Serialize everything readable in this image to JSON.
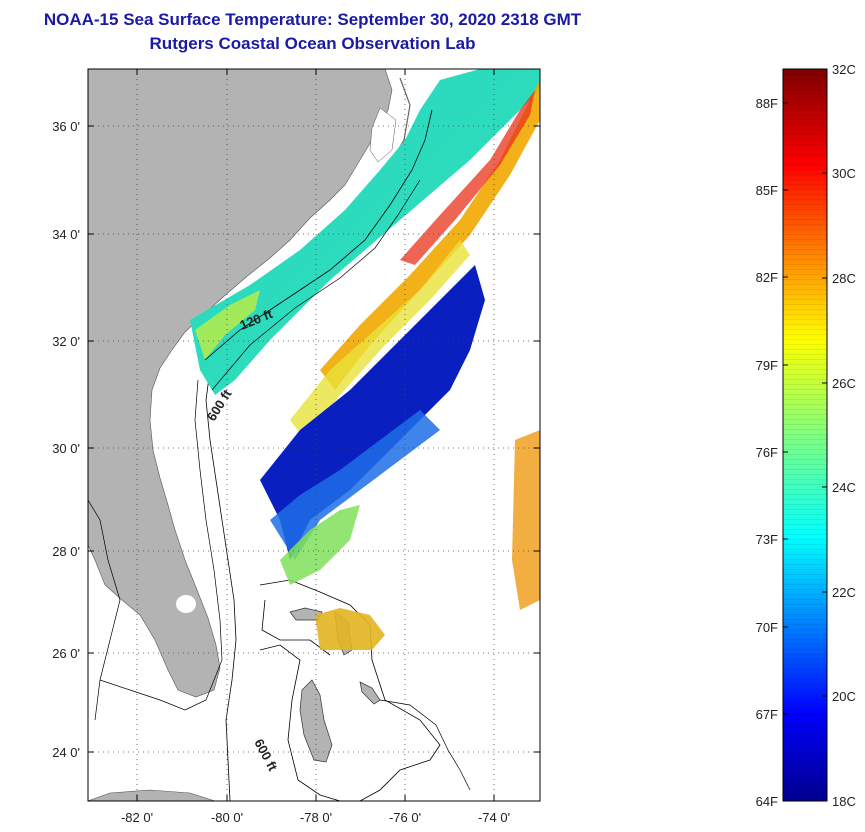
{
  "title": {
    "line1": "NOAA-15 Sea Surface Temperature:  September 30, 2020 2318 GMT",
    "line2": "Rutgers Coastal Ocean Observation Lab"
  },
  "map": {
    "lat_ticks": [
      "36 0'",
      "34 0'",
      "32 0'",
      "30 0'",
      "28 0'",
      "26 0'",
      "24 0'"
    ],
    "lon_ticks": [
      "-82 0'",
      "-80 0'",
      "-78 0'",
      "-76 0'",
      "-74 0'"
    ],
    "contour_labels": {
      "c120": "120 ft",
      "c600a": "600 ft",
      "c600b": "600 ft"
    },
    "colors": {
      "land": "#b3b3b3",
      "ocean_blank": "#ffffff"
    }
  },
  "colorbar": {
    "celsius": [
      "32C",
      "30C",
      "28C",
      "26C",
      "24C",
      "22C",
      "20C",
      "18C"
    ],
    "fahrenheit": [
      "88F",
      "85F",
      "82F",
      "79F",
      "76F",
      "73F",
      "70F",
      "67F",
      "64F"
    ],
    "range_c": [
      18,
      32
    ],
    "colormap": "jet"
  }
}
